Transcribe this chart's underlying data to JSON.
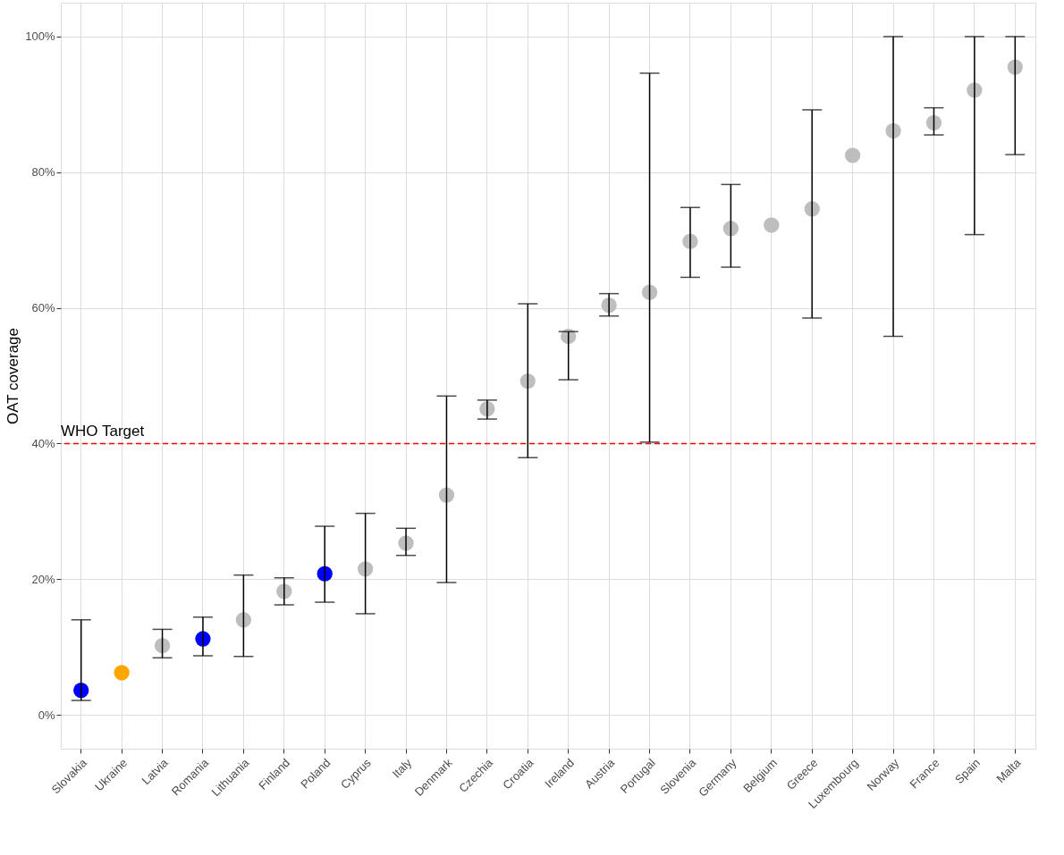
{
  "chart_data": {
    "type": "scatter",
    "ylabel": "OAT coverage",
    "categories": [
      "Slovakia",
      "Ukraine",
      "Latvia",
      "Romania",
      "Lithuania",
      "Finland",
      "Poland",
      "Cyprus",
      "Italy",
      "Denmark",
      "Czechia",
      "Croatia",
      "Ireland",
      "Austria",
      "Portugal",
      "Slovenia",
      "Germany",
      "Belgium",
      "Greece",
      "Luxembourg",
      "Norway",
      "France",
      "Spain",
      "Malta"
    ],
    "values": [
      3.6,
      6.2,
      10.2,
      11.2,
      14.0,
      18.2,
      20.8,
      21.5,
      25.3,
      32.4,
      45.1,
      49.2,
      55.8,
      60.4,
      62.3,
      69.8,
      71.7,
      72.2,
      74.6,
      82.5,
      86.1,
      87.3,
      92.1,
      95.5
    ],
    "errors": [
      [
        2.1,
        14.0
      ],
      null,
      [
        8.4,
        12.6
      ],
      [
        8.7,
        14.4
      ],
      [
        8.6,
        20.6
      ],
      [
        16.2,
        20.2
      ],
      [
        16.6,
        27.8
      ],
      [
        14.9,
        29.7
      ],
      [
        23.5,
        27.5
      ],
      [
        19.5,
        47.0
      ],
      [
        43.6,
        46.4
      ],
      [
        37.9,
        60.6
      ],
      [
        49.4,
        56.5
      ],
      [
        58.8,
        62.1
      ],
      [
        40.2,
        94.6
      ],
      [
        64.5,
        74.8
      ],
      [
        66.0,
        78.2
      ],
      null,
      [
        58.5,
        89.2
      ],
      null,
      [
        55.8,
        100
      ],
      [
        85.5,
        89.5
      ],
      [
        70.8,
        100
      ],
      [
        82.6,
        100
      ]
    ],
    "colors": [
      "#0000ff",
      "#ffa500",
      "#bebebe",
      "#0000ff",
      "#bebebe",
      "#bebebe",
      "#0000ff",
      "#bebebe",
      "#bebebe",
      "#bebebe",
      "#bebebe",
      "#bebebe",
      "#bebebe",
      "#bebebe",
      "#bebebe",
      "#bebebe",
      "#bebebe",
      "#bebebe",
      "#bebebe",
      "#bebebe",
      "#bebebe",
      "#bebebe",
      "#bebebe",
      "#bebebe"
    ],
    "ylim": [
      -5,
      105
    ],
    "yticks": [
      {
        "value": 0,
        "label": "0%"
      },
      {
        "value": 20,
        "label": "20%"
      },
      {
        "value": 40,
        "label": "40%"
      },
      {
        "value": 60,
        "label": "60%"
      },
      {
        "value": 80,
        "label": "80%"
      },
      {
        "value": 100,
        "label": "100%"
      }
    ],
    "ref_lines": [
      {
        "axis": "y",
        "value": 40,
        "label": "WHO Target",
        "color": "#ff0000",
        "line_style": "dashed"
      }
    ],
    "grid": true,
    "marker": "circle"
  }
}
